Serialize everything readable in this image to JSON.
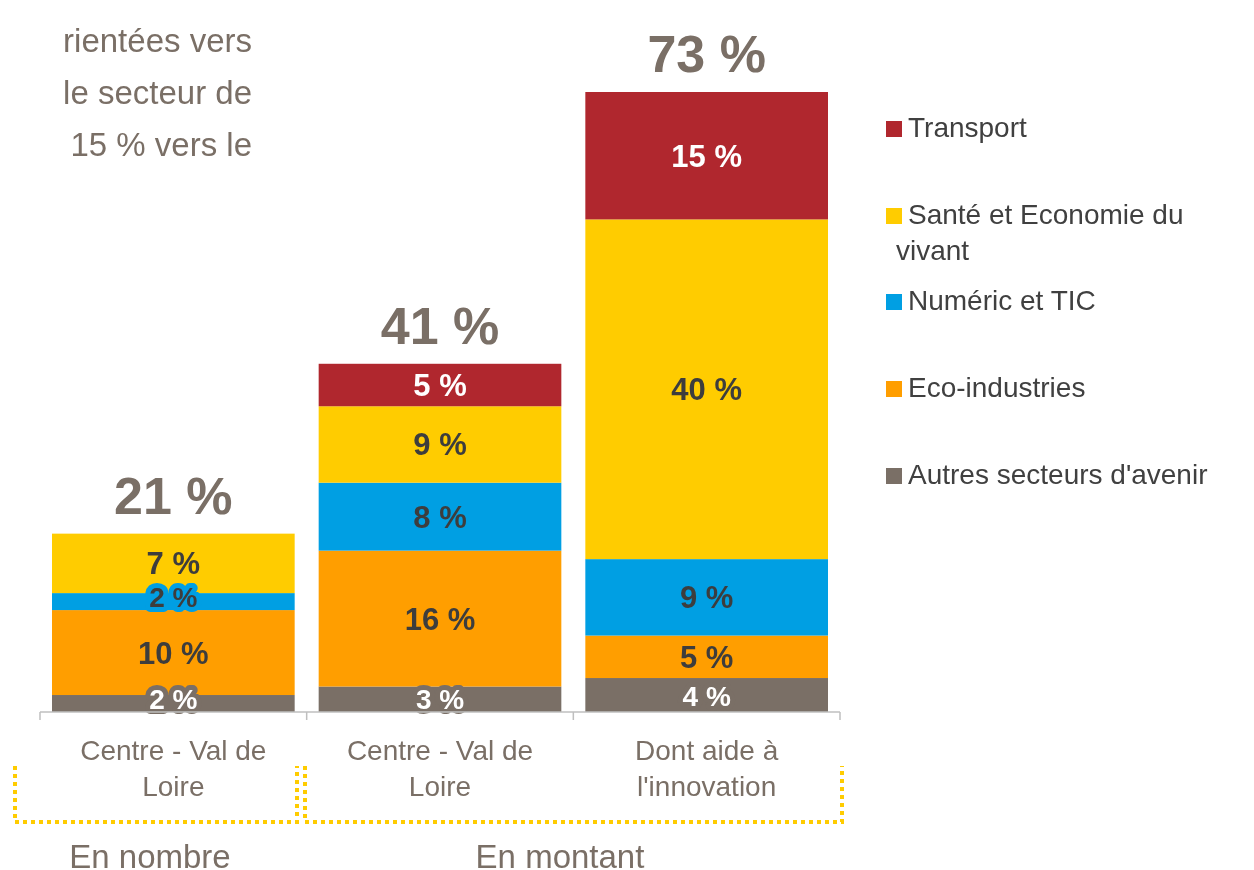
{
  "chart_data": {
    "type": "bar",
    "stacked": true,
    "categories": [
      "Centre - Val de Loire",
      "Centre - Val de Loire",
      "Dont aide à l'innovation"
    ],
    "series": [
      {
        "name": "Autres secteurs d'avenir",
        "color": "#7a6f66",
        "values": [
          2,
          3,
          4
        ],
        "value_labels": [
          "2 %",
          "3 %",
          "4 %"
        ]
      },
      {
        "name": "Eco-industries",
        "color": "#ff9e00",
        "values": [
          10,
          16,
          5
        ],
        "value_labels": [
          "10 %",
          "16 %",
          "5 %"
        ]
      },
      {
        "name": "Numéric et TIC",
        "color": "#009fe3",
        "values": [
          2,
          8,
          9
        ],
        "value_labels": [
          "2 %",
          "8 %",
          "9 %"
        ]
      },
      {
        "name": "Santé et Economie du vivant",
        "color": "#ffcc00",
        "values": [
          7,
          9,
          40
        ],
        "value_labels": [
          "7 %",
          "9 %",
          "40 %"
        ]
      },
      {
        "name": "Transport",
        "color": "#b0272e",
        "values": [
          null,
          5,
          15
        ],
        "value_labels": [
          null,
          "5 %",
          "15 %"
        ]
      }
    ],
    "totals": [
      "21 %",
      "41 %",
      "73 %"
    ],
    "annotations": [
      "rientées vers",
      "le secteur de",
      "15 % vers le",
      "En nombre",
      "En montant"
    ],
    "legend": "right",
    "tick_labels": "x"
  }
}
